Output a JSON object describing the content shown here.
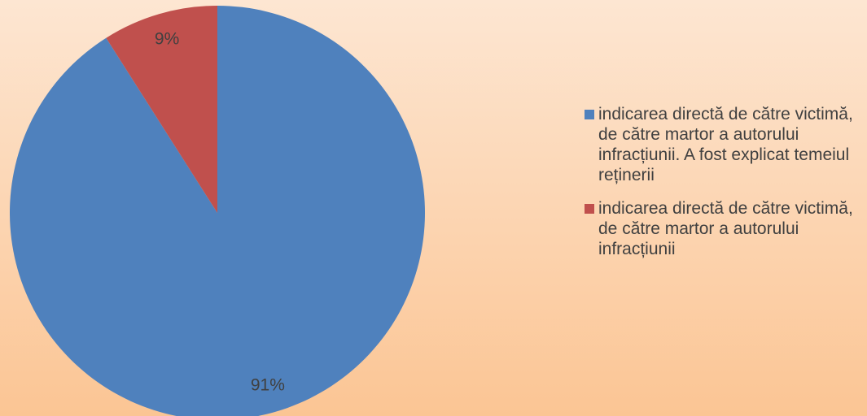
{
  "chart_data": {
    "type": "pie",
    "categories": [
      "indicarea directă de către victimă, de către martor a autorului infracțiunii. A fost explicat temeiul reținerii",
      "indicarea directă de către victimă, de către martor a autorului infracțiunii"
    ],
    "values": [
      91,
      9
    ],
    "value_labels": [
      "91%",
      "9%"
    ],
    "colors": [
      "#4f81bd",
      "#c0504d"
    ],
    "legend": "right"
  }
}
